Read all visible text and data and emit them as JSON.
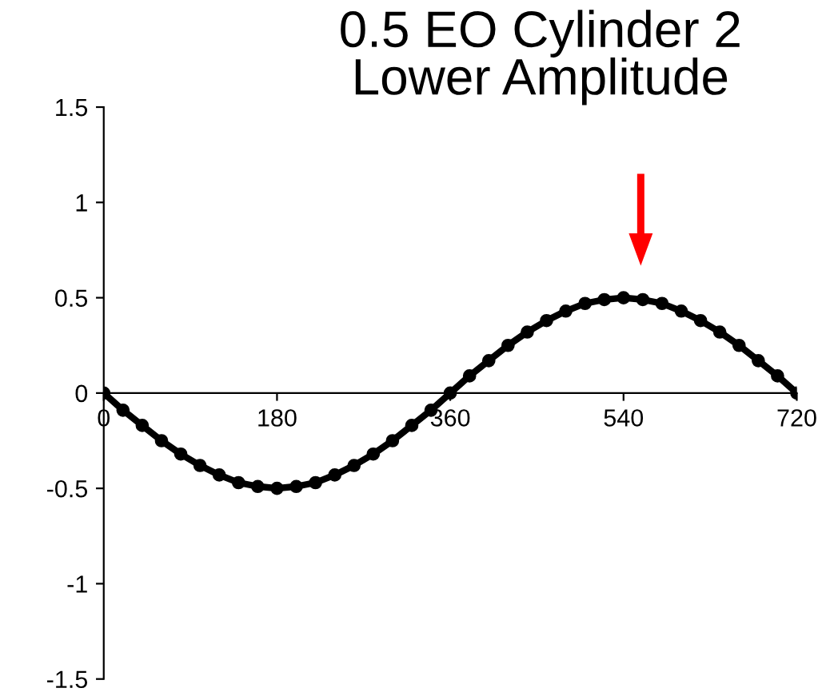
{
  "chart_data": {
    "type": "line",
    "title": "0.5 EO Cylinder 2\nLower Amplitude",
    "x": [
      0,
      20,
      40,
      60,
      80,
      100,
      120,
      140,
      160,
      180,
      200,
      220,
      240,
      260,
      280,
      300,
      320,
      340,
      360,
      380,
      400,
      420,
      440,
      460,
      480,
      500,
      520,
      540,
      560,
      580,
      600,
      620,
      640,
      660,
      680,
      700,
      720
    ],
    "series": [
      {
        "color": "#000000",
        "values": [
          0,
          -0.09,
          -0.17,
          -0.25,
          -0.32,
          -0.38,
          -0.43,
          -0.47,
          -0.49,
          -0.5,
          -0.49,
          -0.47,
          -0.43,
          -0.38,
          -0.32,
          -0.25,
          -0.17,
          -0.09,
          0,
          0.09,
          0.17,
          0.25,
          0.32,
          0.38,
          0.43,
          0.47,
          0.49,
          0.5,
          0.49,
          0.47,
          0.43,
          0.38,
          0.32,
          0.25,
          0.17,
          0.09,
          0
        ]
      }
    ],
    "xlim": [
      0,
      720
    ],
    "xticks": [
      0,
      180,
      360,
      540,
      720
    ],
    "ylim": [
      -1.5,
      1.5
    ],
    "yticks": [
      -1.5,
      -1,
      -0.5,
      0,
      0.5,
      1,
      1.5
    ],
    "grid": false,
    "legend": false,
    "marker": "circle",
    "line_style": "solid"
  }
}
